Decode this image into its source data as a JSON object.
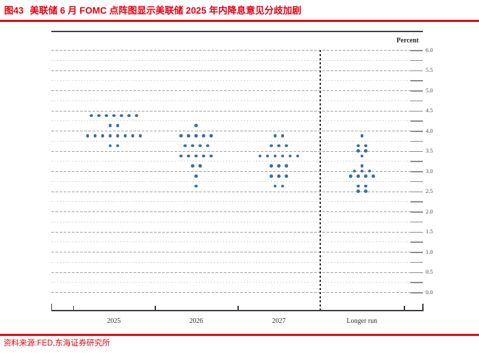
{
  "header": {
    "tag": "图43",
    "title": "美联储 6 月 FOMC 点阵图显示美联储 2025 年内降息意见分歧加剧"
  },
  "footer": {
    "source": "资料来源:FED,东海证券研究所"
  },
  "chart_data": {
    "type": "scatter",
    "subtype": "fomc-dot-plot",
    "ylabel": "Percent",
    "ylim": [
      0.0,
      6.0
    ],
    "y_gridline_step": 0.25,
    "y_label_step": 0.5,
    "y_tick_labels": [
      "6.0",
      "5.5",
      "5.0",
      "4.5",
      "4.0",
      "3.5",
      "3.0",
      "2.5",
      "2.0",
      "1.5",
      "1.0",
      "0.5",
      "0.0"
    ],
    "grid": true,
    "legend_position": "none",
    "categories": [
      "2025",
      "2026",
      "2027",
      "Longer run"
    ],
    "series": [
      {
        "name": "2025",
        "points": [
          {
            "rate": 4.375,
            "count": 7
          },
          {
            "rate": 4.125,
            "count": 2
          },
          {
            "rate": 3.875,
            "count": 8
          },
          {
            "rate": 3.625,
            "count": 2
          }
        ]
      },
      {
        "name": "2026",
        "points": [
          {
            "rate": 4.125,
            "count": 1
          },
          {
            "rate": 3.875,
            "count": 5
          },
          {
            "rate": 3.625,
            "count": 4
          },
          {
            "rate": 3.375,
            "count": 5
          },
          {
            "rate": 3.125,
            "count": 2
          },
          {
            "rate": 2.875,
            "count": 1
          },
          {
            "rate": 2.625,
            "count": 1
          }
        ]
      },
      {
        "name": "2027",
        "points": [
          {
            "rate": 3.875,
            "count": 2
          },
          {
            "rate": 3.625,
            "count": 3
          },
          {
            "rate": 3.375,
            "count": 6
          },
          {
            "rate": 3.125,
            "count": 3
          },
          {
            "rate": 2.875,
            "count": 3
          },
          {
            "rate": 2.625,
            "count": 2
          }
        ]
      },
      {
        "name": "Longer run",
        "points": [
          {
            "rate": 3.875,
            "count": 1
          },
          {
            "rate": 3.625,
            "count": 2
          },
          {
            "rate": 3.5,
            "count": 2
          },
          {
            "rate": 3.375,
            "count": 1
          },
          {
            "rate": 3.125,
            "count": 1
          },
          {
            "rate": 3.0,
            "count": 3
          },
          {
            "rate": 2.875,
            "count": 4
          },
          {
            "rate": 2.625,
            "count": 2
          },
          {
            "rate": 2.5,
            "count": 2
          }
        ]
      }
    ],
    "colors": {
      "dot": "#3a6fa5",
      "accent_red": "#e60012"
    }
  }
}
